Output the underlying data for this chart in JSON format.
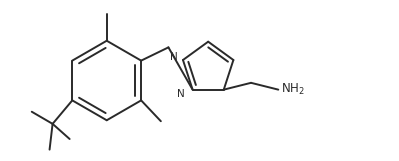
{
  "bg_color": "#ffffff",
  "line_color": "#2a2a2a",
  "line_width": 1.4,
  "fig_width": 3.99,
  "fig_height": 1.61,
  "dpi": 100,
  "xlim": [
    0,
    10.5
  ],
  "ylim": [
    0,
    4.2
  ]
}
